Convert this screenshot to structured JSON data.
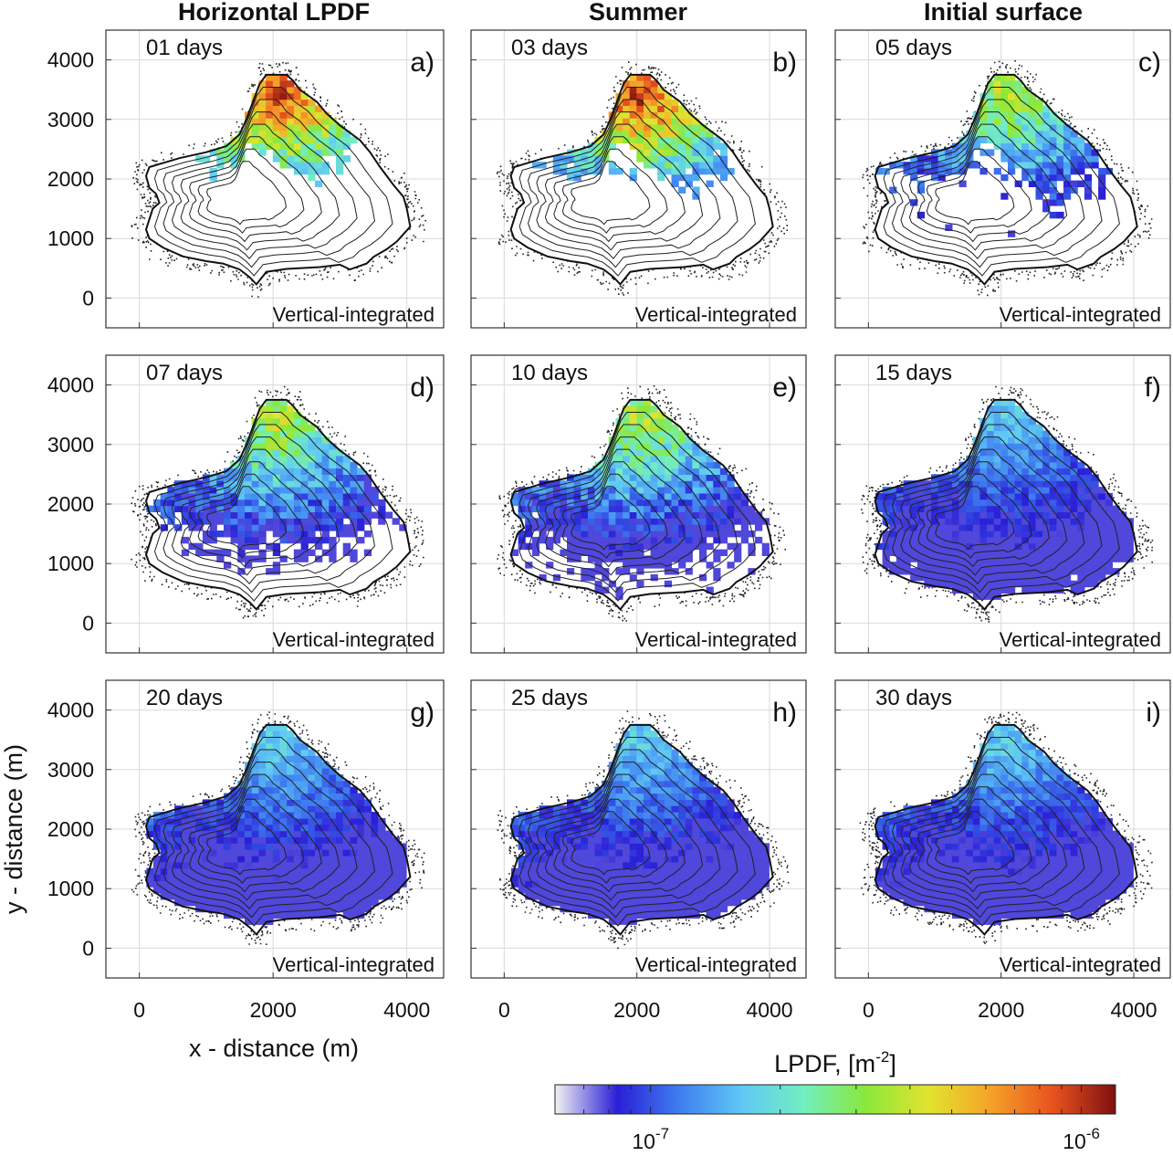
{
  "chart_data": {
    "type": "heatmap",
    "column_titles": [
      "Horizontal LPDF",
      "Summer",
      "Initial surface"
    ],
    "xlabel": "x - distance (m)",
    "ylabel": "y - distance (m)",
    "x_ticks": [
      0,
      2000,
      4000
    ],
    "y_ticks": [
      0,
      1000,
      2000,
      3000,
      4000
    ],
    "xlim": [
      -500,
      4550
    ],
    "ylim": [
      -500,
      4500
    ],
    "panel_note": "Vertical-integrated",
    "grid": true,
    "panels": [
      {
        "label": "a)",
        "days": "01 days",
        "day": 1
      },
      {
        "label": "b)",
        "days": "03 days",
        "day": 3
      },
      {
        "label": "c)",
        "days": "05 days",
        "day": 5
      },
      {
        "label": "d)",
        "days": "07 days",
        "day": 7
      },
      {
        "label": "e)",
        "days": "10 days",
        "day": 10
      },
      {
        "label": "f)",
        "days": "15 days",
        "day": 15
      },
      {
        "label": "g)",
        "days": "20 days",
        "day": 20
      },
      {
        "label": "h)",
        "days": "25 days",
        "day": 25
      },
      {
        "label": "i)",
        "days": "30 days",
        "day": 30
      }
    ],
    "colorbar": {
      "label_base": "LPDF, [m",
      "label_exp": "-2",
      "label_end": "]",
      "scale": "log",
      "range": [
        6e-08,
        1.2e-06
      ],
      "ticks": [
        {
          "value": 1e-07,
          "base": "10",
          "exp": "-7"
        },
        {
          "value": 1e-06,
          "base": "10",
          "exp": "-6"
        }
      ],
      "colors": [
        "#f2f2f2",
        "#2a1fd6",
        "#3f7ef0",
        "#5fc8f5",
        "#72eec0",
        "#8ae83a",
        "#e2e42f",
        "#f5a228",
        "#e8521e",
        "#7e1010"
      ]
    }
  }
}
